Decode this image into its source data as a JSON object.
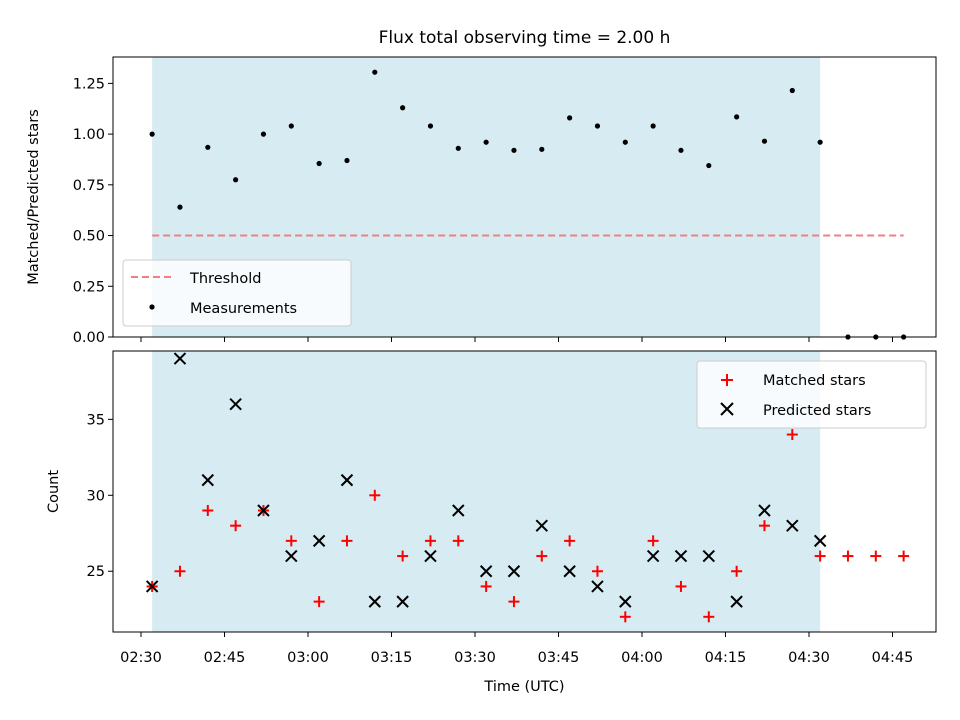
{
  "chart_data": [
    {
      "type": "scatter",
      "title": "Flux total observing time = 2.00 h",
      "xlabel": "",
      "ylabel": "Matched/Predicted stars",
      "ylim": [
        0,
        1.38
      ],
      "yticks": [
        "0.00",
        "0.25",
        "0.50",
        "0.75",
        "1.00",
        "1.25"
      ],
      "legend_position": "lower-left",
      "shaded_span": {
        "start": "02:32",
        "end": "04:32",
        "color": "#add8e6"
      },
      "series": [
        {
          "name": "Threshold",
          "style": "dashed-line",
          "color": "#f08080",
          "x": [
            "02:32",
            "04:47"
          ],
          "y": [
            0.5,
            0.5
          ]
        },
        {
          "name": "Measurements",
          "style": "dot",
          "color": "#000000",
          "x": [
            "02:32",
            "02:37",
            "02:42",
            "02:47",
            "02:52",
            "02:57",
            "03:02",
            "03:07",
            "03:12",
            "03:17",
            "03:22",
            "03:27",
            "03:32",
            "03:37",
            "03:42",
            "03:47",
            "03:52",
            "03:57",
            "04:02",
            "04:07",
            "04:12",
            "04:17",
            "04:22",
            "04:27",
            "04:32",
            "04:37",
            "04:42",
            "04:47"
          ],
          "y": [
            1.0,
            0.64,
            0.935,
            0.775,
            1.0,
            1.04,
            0.855,
            0.87,
            1.305,
            1.13,
            1.04,
            0.93,
            0.96,
            0.92,
            0.925,
            1.08,
            1.04,
            0.96,
            1.04,
            0.92,
            0.845,
            1.085,
            0.965,
            1.215,
            0.96,
            0,
            0,
            0
          ]
        }
      ]
    },
    {
      "type": "scatter",
      "xlabel": "Time (UTC)",
      "ylabel": "Count",
      "ylim": [
        21,
        39.5
      ],
      "yticks": [
        "25",
        "30",
        "35"
      ],
      "xticks": [
        "02:30",
        "02:45",
        "03:00",
        "03:15",
        "03:30",
        "03:45",
        "04:00",
        "04:15",
        "04:30",
        "04:45"
      ],
      "legend_position": "upper-right",
      "shaded_span": {
        "start": "02:32",
        "end": "04:32",
        "color": "#add8e6"
      },
      "series": [
        {
          "name": "Matched stars",
          "marker": "plus",
          "color": "#ff0000",
          "x": [
            "02:32",
            "02:37",
            "02:42",
            "02:47",
            "02:52",
            "02:57",
            "03:02",
            "03:07",
            "03:12",
            "03:17",
            "03:22",
            "03:27",
            "03:32",
            "03:37",
            "03:42",
            "03:47",
            "03:52",
            "03:57",
            "04:02",
            "04:07",
            "04:12",
            "04:17",
            "04:22",
            "04:27",
            "04:32",
            "04:37",
            "04:42",
            "04:47"
          ],
          "y": [
            24,
            25,
            29,
            28,
            29,
            27,
            23,
            27,
            30,
            26,
            27,
            27,
            24,
            23,
            26,
            27,
            25,
            22,
            27,
            24,
            22,
            25,
            28,
            34,
            26,
            26,
            26,
            26
          ]
        },
        {
          "name": "Predicted stars",
          "marker": "x",
          "color": "#000000",
          "x": [
            "02:32",
            "02:37",
            "02:42",
            "02:47",
            "02:52",
            "02:57",
            "03:02",
            "03:07",
            "03:12",
            "03:17",
            "03:22",
            "03:27",
            "03:32",
            "03:37",
            "03:42",
            "03:47",
            "03:52",
            "03:57",
            "04:02",
            "04:07",
            "04:12",
            "04:17",
            "04:22",
            "04:27",
            "04:32"
          ],
          "y": [
            24,
            39,
            31,
            36,
            29,
            26,
            27,
            31,
            23,
            23,
            26,
            29,
            25,
            25,
            28,
            25,
            24,
            23,
            26,
            26,
            26,
            23,
            29,
            28,
            27
          ]
        }
      ]
    }
  ]
}
